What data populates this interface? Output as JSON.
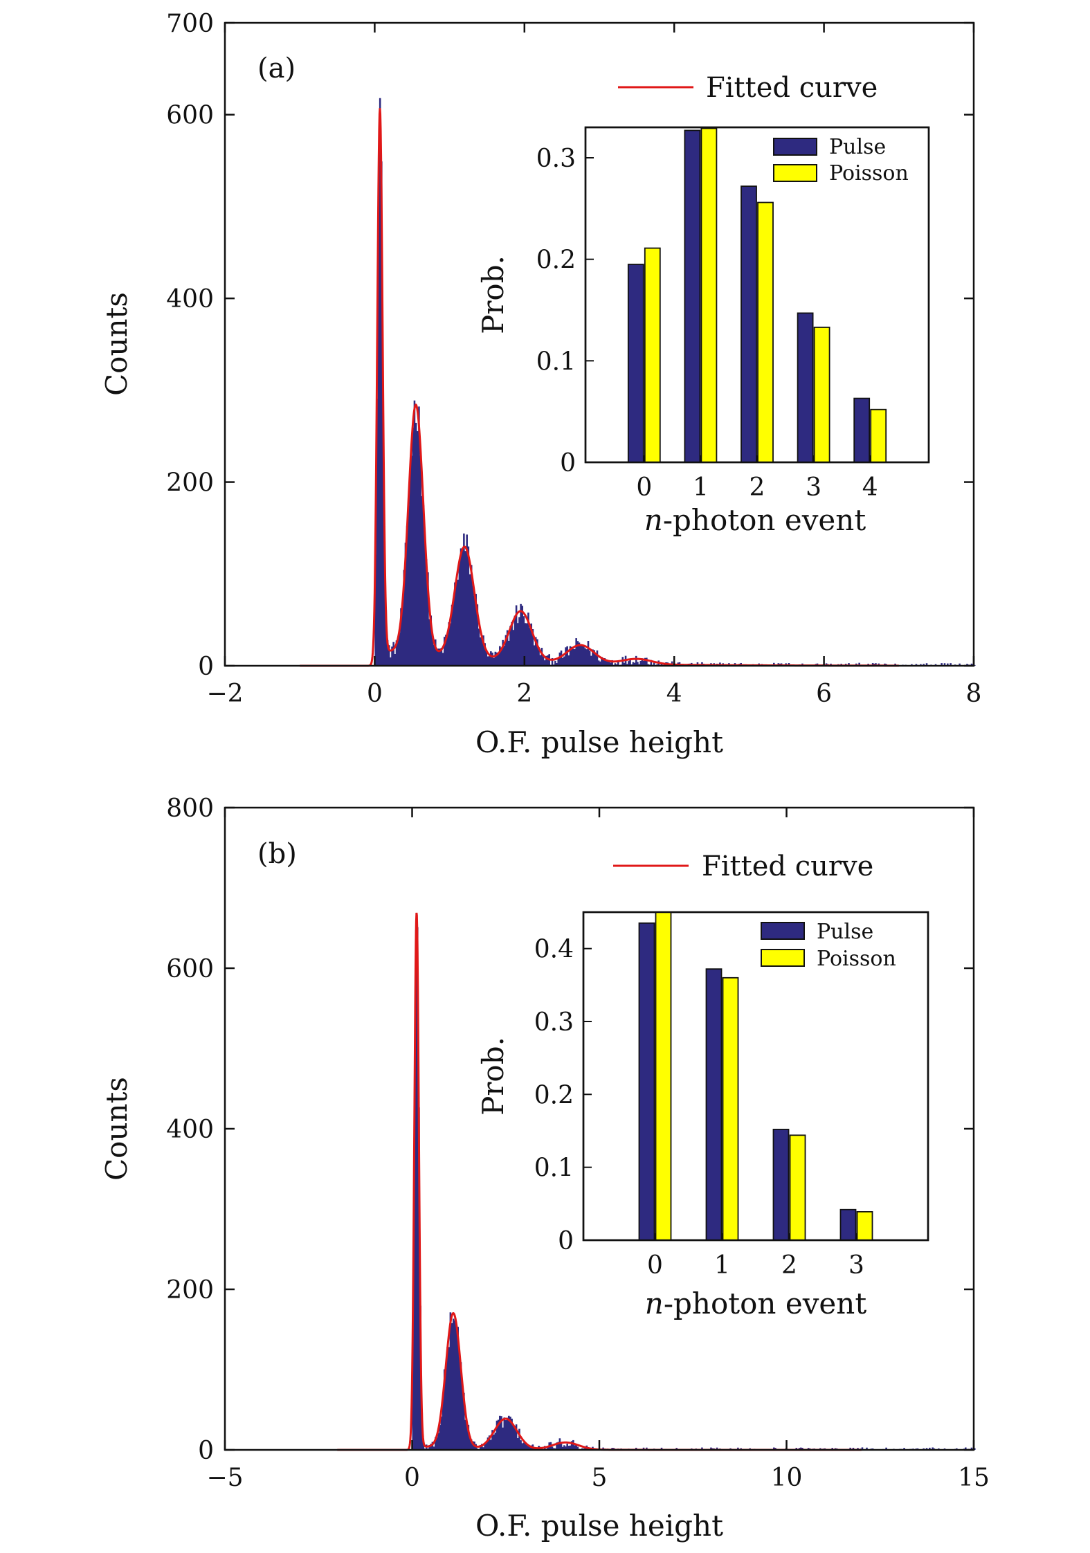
{
  "chart_data": [
    {
      "type": "histogram",
      "panel_label": "(a)",
      "xlabel": "O.F. pulse height",
      "ylabel": "Counts",
      "xlim": [
        -2,
        8
      ],
      "ylim": [
        0,
        700
      ],
      "xticks": [
        -2,
        0,
        2,
        4,
        6,
        8
      ],
      "xtick_labels": [
        "−2",
        "0",
        "2",
        "4",
        "6",
        "8"
      ],
      "yticks": [
        0,
        200,
        400,
        600,
        700
      ],
      "ytick_labels": [
        "0",
        "200",
        "400",
        "600",
        "700"
      ],
      "legend": "Fitted curve",
      "colors": {
        "histogram": "#2e2a80",
        "fit": "#e01818"
      },
      "fit_peaks": [
        {
          "mean": 0.07,
          "amplitude": 590,
          "sigma": 0.035
        },
        {
          "mean": 0.55,
          "amplitude": 272,
          "sigma": 0.1
        },
        {
          "mean": 1.2,
          "amplitude": 122,
          "sigma": 0.13
        },
        {
          "mean": 1.95,
          "amplitude": 55,
          "sigma": 0.15
        },
        {
          "mean": 2.75,
          "amplitude": 20,
          "sigma": 0.18
        },
        {
          "mean": 3.5,
          "amplitude": 6,
          "sigma": 0.2
        }
      ],
      "fit_baseline": 18,
      "fit_range": [
        -1,
        7
      ],
      "inset": {
        "type": "bar",
        "xlabel_italic": "n",
        "xlabel_rest": "-photon event",
        "ylabel": "Prob.",
        "categories": [
          "0",
          "1",
          "2",
          "3",
          "4"
        ],
        "ylim": [
          0,
          0.33
        ],
        "yticks": [
          0,
          0.1,
          0.2,
          0.3
        ],
        "ytick_labels": [
          "0",
          "0.1",
          "0.2",
          "0.3"
        ],
        "series": [
          {
            "name": "Pulse",
            "color": "#2e2a80",
            "values": [
              0.195,
              0.327,
              0.272,
              0.147,
              0.063
            ]
          },
          {
            "name": "Poisson",
            "color": "#ffff00",
            "values": [
              0.211,
              0.329,
              0.256,
              0.133,
              0.052
            ]
          }
        ]
      }
    },
    {
      "type": "histogram",
      "panel_label": "(b)",
      "xlabel": "O.F. pulse height",
      "ylabel": "Counts",
      "xlim": [
        -5,
        15
      ],
      "ylim": [
        0,
        800
      ],
      "xticks": [
        -5,
        0,
        5,
        10,
        15
      ],
      "xtick_labels": [
        "−5",
        "0",
        "5",
        "10",
        "15"
      ],
      "yticks": [
        0,
        200,
        400,
        600,
        800
      ],
      "ytick_labels": [
        "0",
        "200",
        "400",
        "600",
        "800"
      ],
      "legend": "Fitted curve",
      "colors": {
        "histogram": "#2e2a80",
        "fit": "#e01818"
      },
      "fit_peaks": [
        {
          "mean": 0.12,
          "amplitude": 665,
          "sigma": 0.06
        },
        {
          "mean": 1.1,
          "amplitude": 168,
          "sigma": 0.2
        },
        {
          "mean": 2.5,
          "amplitude": 38,
          "sigma": 0.3
        },
        {
          "mean": 4.1,
          "amplitude": 9,
          "sigma": 0.35
        }
      ],
      "fit_baseline": 5,
      "fit_range": [
        -2,
        12
      ],
      "inset": {
        "type": "bar",
        "xlabel_italic": "n",
        "xlabel_rest": "-photon event",
        "ylabel": "Prob.",
        "categories": [
          "0",
          "1",
          "2",
          "3"
        ],
        "ylim": [
          0,
          0.45
        ],
        "yticks": [
          0,
          0.1,
          0.2,
          0.3,
          0.4
        ],
        "ytick_labels": [
          "0",
          "0.1",
          "0.2",
          "0.3",
          "0.4"
        ],
        "series": [
          {
            "name": "Pulse",
            "color": "#2e2a80",
            "values": [
              0.435,
              0.372,
              0.152,
              0.042
            ]
          },
          {
            "name": "Poisson",
            "color": "#ffff00",
            "values": [
              0.45,
              0.36,
              0.144,
              0.039
            ]
          }
        ]
      }
    }
  ]
}
